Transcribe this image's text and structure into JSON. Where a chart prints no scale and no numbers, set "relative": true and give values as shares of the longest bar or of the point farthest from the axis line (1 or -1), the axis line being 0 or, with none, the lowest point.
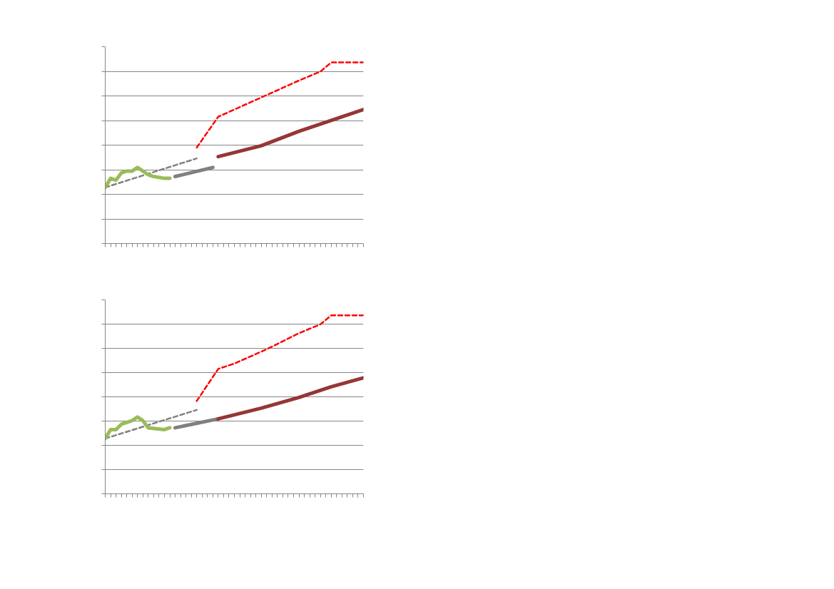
{
  "chart_data": [
    {
      "type": "line",
      "relative": true,
      "grid": "y",
      "categories": [
        null,
        null,
        null,
        null,
        null,
        null,
        null,
        null,
        null,
        null,
        null,
        null,
        null,
        null,
        null,
        null,
        null,
        null,
        null,
        null,
        null,
        null,
        null,
        null,
        null,
        null,
        null,
        null,
        null,
        null,
        null,
        null,
        null,
        null,
        null,
        null,
        null,
        null,
        null,
        null,
        null,
        null,
        null,
        null,
        null,
        null,
        null,
        null,
        null
      ],
      "series": [
        {
          "color": "#808080",
          "line_style": "dashed",
          "values": [
            0.31,
            null,
            null,
            null,
            null,
            null,
            null,
            null,
            null,
            null,
            null,
            null,
            null,
            null,
            null,
            null,
            null,
            0.47,
            null,
            null,
            null,
            null,
            null,
            null,
            null,
            null,
            null,
            null,
            null,
            null,
            null,
            null,
            null,
            null,
            null,
            null,
            null,
            null,
            null,
            null,
            null,
            null,
            null,
            null,
            null,
            null,
            null,
            null,
            null
          ]
        },
        {
          "color": "#9bbb59",
          "line_style": "solid",
          "values": [
            0.31,
            0.36,
            0.35,
            0.39,
            0.4,
            0.4,
            0.42,
            0.4,
            0.38,
            0.37,
            null,
            0.36,
            0.36,
            null,
            null,
            null,
            null,
            null,
            null,
            null,
            null,
            null,
            null,
            null,
            null,
            null,
            null,
            null,
            null,
            null,
            null,
            null,
            null,
            null,
            null,
            null,
            null,
            null,
            null,
            null,
            null,
            null,
            null,
            null,
            null,
            null,
            null,
            null,
            null
          ]
        },
        {
          "color": "#808080",
          "line_style": "solid",
          "values": [
            null,
            null,
            null,
            null,
            null,
            null,
            null,
            null,
            null,
            null,
            null,
            null,
            null,
            0.37,
            null,
            null,
            null,
            null,
            null,
            null,
            0.42,
            null,
            null,
            null,
            null,
            null,
            null,
            null,
            null,
            null,
            null,
            null,
            null,
            null,
            null,
            null,
            null,
            null,
            null,
            null,
            null,
            null,
            null,
            null,
            null,
            null,
            null,
            null,
            null
          ]
        },
        {
          "color": "#ff0000",
          "line_style": "dashed",
          "values": [
            null,
            null,
            null,
            null,
            null,
            null,
            null,
            null,
            null,
            null,
            null,
            null,
            null,
            null,
            null,
            null,
            null,
            0.53,
            null,
            null,
            null,
            0.7,
            null,
            null,
            0.74,
            null,
            null,
            null,
            null,
            null,
            0.82,
            null,
            null,
            null,
            null,
            null,
            0.9,
            null,
            null,
            null,
            0.95,
            null,
            1.0,
            null,
            null,
            null,
            null,
            null,
            1.0
          ]
        },
        {
          "color": "#953735",
          "line_style": "solid",
          "values": [
            null,
            null,
            null,
            null,
            null,
            null,
            null,
            null,
            null,
            null,
            null,
            null,
            null,
            null,
            null,
            null,
            null,
            null,
            null,
            null,
            null,
            0.48,
            null,
            null,
            null,
            null,
            null,
            null,
            null,
            0.54,
            null,
            null,
            null,
            null,
            null,
            null,
            0.62,
            null,
            null,
            null,
            null,
            null,
            0.68,
            null,
            null,
            null,
            null,
            null,
            0.74
          ]
        }
      ]
    },
    {
      "type": "line",
      "relative": true,
      "grid": "y",
      "categories": [
        null,
        null,
        null,
        null,
        null,
        null,
        null,
        null,
        null,
        null,
        null,
        null,
        null,
        null,
        null,
        null,
        null,
        null,
        null,
        null,
        null,
        null,
        null,
        null,
        null,
        null,
        null,
        null,
        null,
        null,
        null,
        null,
        null,
        null,
        null,
        null,
        null,
        null,
        null,
        null,
        null,
        null,
        null,
        null,
        null,
        null,
        null,
        null,
        null
      ],
      "series": [
        {
          "color": "#808080",
          "line_style": "dashed",
          "values": [
            0.31,
            null,
            null,
            null,
            null,
            null,
            null,
            null,
            null,
            null,
            null,
            null,
            null,
            null,
            null,
            null,
            null,
            0.47,
            null,
            null,
            null,
            null,
            null,
            null,
            null,
            null,
            null,
            null,
            null,
            null,
            null,
            null,
            null,
            null,
            null,
            null,
            null,
            null,
            null,
            null,
            null,
            null,
            null,
            null,
            null,
            null,
            null,
            null,
            null
          ]
        },
        {
          "color": "#9bbb59",
          "line_style": "solid",
          "values": [
            0.31,
            0.36,
            0.36,
            0.39,
            0.4,
            0.41,
            0.43,
            0.41,
            0.37,
            null,
            null,
            0.36,
            0.37,
            null,
            null,
            null,
            null,
            null,
            null,
            null,
            null,
            null,
            null,
            null,
            null,
            null,
            null,
            null,
            null,
            null,
            null,
            null,
            null,
            null,
            null,
            null,
            null,
            null,
            null,
            null,
            null,
            null,
            null,
            null,
            null,
            null,
            null,
            null,
            null
          ]
        },
        {
          "color": "#808080",
          "line_style": "solid",
          "values": [
            null,
            null,
            null,
            null,
            null,
            null,
            null,
            null,
            null,
            null,
            null,
            null,
            null,
            0.37,
            null,
            null,
            null,
            null,
            null,
            null,
            null,
            0.42,
            null,
            null,
            null,
            null,
            null,
            null,
            null,
            null,
            null,
            null,
            null,
            null,
            null,
            null,
            null,
            null,
            null,
            null,
            null,
            null,
            null,
            null,
            null,
            null,
            null,
            null,
            null
          ]
        },
        {
          "color": "#ff0000",
          "line_style": "dashed",
          "values": [
            null,
            null,
            null,
            null,
            null,
            null,
            null,
            null,
            null,
            null,
            null,
            null,
            null,
            null,
            null,
            null,
            null,
            0.52,
            null,
            null,
            null,
            0.7,
            null,
            null,
            0.73,
            null,
            null,
            null,
            null,
            null,
            0.81,
            null,
            null,
            null,
            null,
            null,
            0.9,
            null,
            null,
            null,
            0.95,
            null,
            1.0,
            null,
            null,
            null,
            null,
            null,
            1.0
          ]
        },
        {
          "color": "#953735",
          "line_style": "solid",
          "values": [
            null,
            null,
            null,
            null,
            null,
            null,
            null,
            null,
            null,
            null,
            null,
            null,
            null,
            null,
            null,
            null,
            null,
            null,
            null,
            null,
            null,
            0.42,
            null,
            null,
            null,
            null,
            null,
            null,
            null,
            0.48,
            null,
            null,
            null,
            null,
            null,
            null,
            0.54,
            null,
            null,
            null,
            null,
            null,
            0.6,
            null,
            null,
            null,
            null,
            null,
            0.65
          ]
        }
      ]
    }
  ]
}
